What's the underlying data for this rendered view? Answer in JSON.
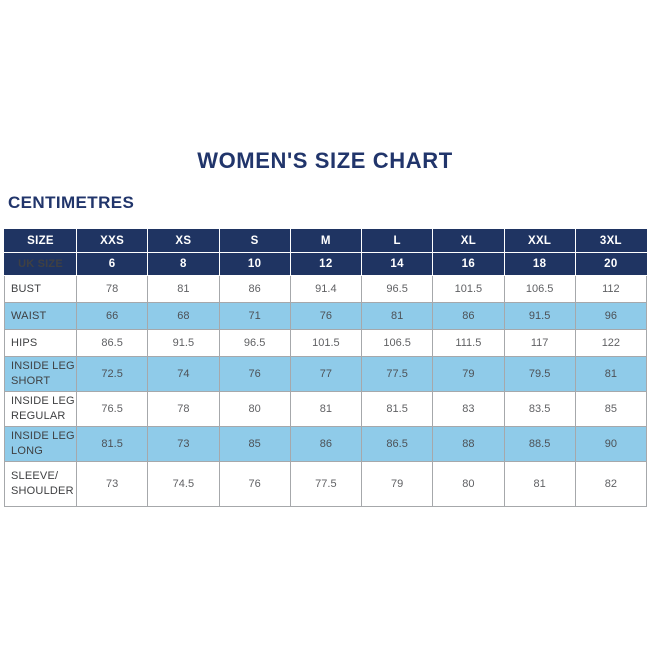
{
  "page": {
    "title": "WOMEN'S SIZE CHART",
    "unit_label": "CENTIMETRES"
  },
  "colors": {
    "navy": "#1f3462",
    "title_navy": "#21356b",
    "shaded_row_blue": "#8fcbe9",
    "border_gray": "#a6a8ab",
    "cell_text": "#606164",
    "label_text": "#3f4042",
    "header_text": "#ffffff"
  },
  "chart_data": {
    "type": "table",
    "title": "WOMEN'S SIZE CHART",
    "unit": "CENTIMETRES",
    "columns": [
      "SIZE",
      "XXS",
      "XS",
      "S",
      "M",
      "L",
      "XL",
      "XXL",
      "3XL"
    ],
    "rows": [
      {
        "label": "UK SIZE",
        "header": true,
        "shaded": false,
        "values": [
          "6",
          "8",
          "10",
          "12",
          "14",
          "16",
          "18",
          "20"
        ]
      },
      {
        "label": "BUST",
        "header": false,
        "shaded": false,
        "values": [
          "78",
          "81",
          "86",
          "91.4",
          "96.5",
          "101.5",
          "106.5",
          "112"
        ]
      },
      {
        "label": "WAIST",
        "header": false,
        "shaded": true,
        "values": [
          "66",
          "68",
          "71",
          "76",
          "81",
          "86",
          "91.5",
          "96"
        ]
      },
      {
        "label": "HIPS",
        "header": false,
        "shaded": false,
        "values": [
          "86.5",
          "91.5",
          "96.5",
          "101.5",
          "106.5",
          "111.5",
          "117",
          "122"
        ]
      },
      {
        "label": "INSIDE LEG SHORT",
        "header": false,
        "shaded": true,
        "values": [
          "72.5",
          "74",
          "76",
          "77",
          "77.5",
          "79",
          "79.5",
          "81"
        ]
      },
      {
        "label": "INSIDE LEG REGULAR",
        "header": false,
        "shaded": false,
        "values": [
          "76.5",
          "78",
          "80",
          "81",
          "81.5",
          "83",
          "83.5",
          "85"
        ]
      },
      {
        "label": "INSIDE LEG LONG",
        "header": false,
        "shaded": true,
        "values": [
          "81.5",
          "73",
          "85",
          "86",
          "86.5",
          "88",
          "88.5",
          "90"
        ]
      },
      {
        "label": "SLEEVE/\nSHOULDER",
        "header": false,
        "shaded": false,
        "values": [
          "73",
          "74.5",
          "76",
          "77.5",
          "79",
          "80",
          "81",
          "82"
        ]
      }
    ]
  }
}
